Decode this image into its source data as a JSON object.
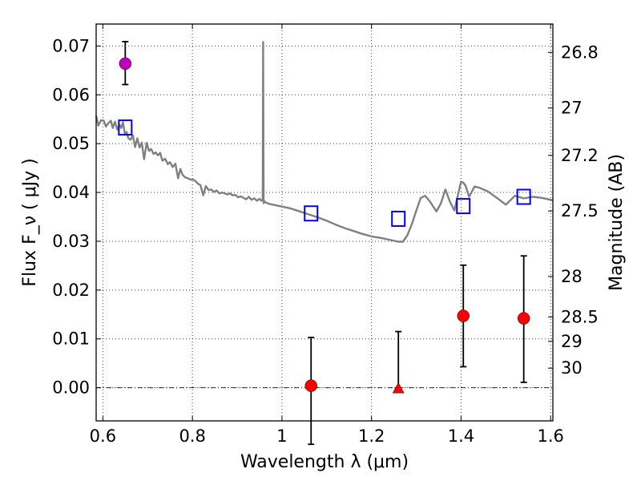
{
  "chart_data": {
    "type": "scatter",
    "title": "",
    "xlabel": "Wavelength  λ (μm)",
    "ylabel": "Flux  F_ν  ( μJy )",
    "ylabel_right": "Magnitude (AB)",
    "xlim": [
      0.585,
      1.605
    ],
    "ylim": [
      -0.0068,
      0.0745
    ],
    "grid": true,
    "x_ticks": [
      0.6,
      0.8,
      1.0,
      1.2,
      1.4,
      1.6
    ],
    "x_tick_labels": [
      "0.6",
      "0.8",
      "1",
      "1.2",
      "1.4",
      "1.6"
    ],
    "y_ticks": [
      0.0,
      0.01,
      0.02,
      0.03,
      0.04,
      0.05,
      0.06,
      0.07
    ],
    "y_tick_labels": [
      "0.00",
      "0.01",
      "0.02",
      "0.03",
      "0.04",
      "0.05",
      "0.06",
      "0.07"
    ],
    "right_ticks": [
      {
        "label": "26.8",
        "flux": 0.0687
      },
      {
        "label": "27",
        "flux": 0.0573
      },
      {
        "label": "27.2",
        "flux": 0.0476
      },
      {
        "label": "27.5",
        "flux": 0.0362
      },
      {
        "label": "28",
        "flux": 0.0228
      },
      {
        "label": "28.5",
        "flux": 0.0145
      },
      {
        "label": "29",
        "flux": 0.0095
      },
      {
        "label": "30",
        "flux": 0.004
      }
    ],
    "model_spectrum": {
      "color": "#808080",
      "x": [
        0.585,
        0.59,
        0.596,
        0.602,
        0.607,
        0.612,
        0.618,
        0.622,
        0.627,
        0.632,
        0.637,
        0.641,
        0.645,
        0.649,
        0.653,
        0.657,
        0.662,
        0.667,
        0.672,
        0.677,
        0.682,
        0.687,
        0.692,
        0.698,
        0.703,
        0.708,
        0.713,
        0.718,
        0.723,
        0.728,
        0.733,
        0.739,
        0.745,
        0.75,
        0.756,
        0.762,
        0.768,
        0.773,
        0.778,
        0.784,
        0.79,
        0.796,
        0.8,
        0.806,
        0.812,
        0.818,
        0.824,
        0.83,
        0.836,
        0.842,
        0.848,
        0.854,
        0.86,
        0.866,
        0.872,
        0.878,
        0.884,
        0.89,
        0.896,
        0.902,
        0.908,
        0.914,
        0.92,
        0.926,
        0.932,
        0.938,
        0.944,
        0.95,
        0.954,
        0.957,
        0.958,
        0.959,
        0.961,
        0.963,
        0.97,
        0.98,
        1.0,
        1.02,
        1.04,
        1.06,
        1.08,
        1.1,
        1.12,
        1.14,
        1.16,
        1.18,
        1.2,
        1.22,
        1.24,
        1.26,
        1.27,
        1.28,
        1.29,
        1.3,
        1.31,
        1.32,
        1.33,
        1.345,
        1.355,
        1.365,
        1.375,
        1.385,
        1.392,
        1.4,
        1.405,
        1.41,
        1.418,
        1.43,
        1.44,
        1.46,
        1.48,
        1.5,
        1.52,
        1.54,
        1.56,
        1.58,
        1.605
      ],
      "y": [
        0.0557,
        0.0537,
        0.0548,
        0.0547,
        0.0535,
        0.0542,
        0.0547,
        0.0532,
        0.0545,
        0.0529,
        0.0539,
        0.0532,
        0.0544,
        0.052,
        0.0524,
        0.0511,
        0.0508,
        0.0517,
        0.0493,
        0.0511,
        0.0492,
        0.0502,
        0.0468,
        0.0502,
        0.0485,
        0.0489,
        0.0479,
        0.0482,
        0.0476,
        0.0481,
        0.0465,
        0.0469,
        0.0458,
        0.0462,
        0.0452,
        0.0459,
        0.0429,
        0.0448,
        0.0436,
        0.0431,
        0.0429,
        0.0426,
        0.0427,
        0.0424,
        0.0418,
        0.0415,
        0.0394,
        0.0413,
        0.0405,
        0.0406,
        0.0401,
        0.0404,
        0.0398,
        0.04,
        0.0398,
        0.0396,
        0.0398,
        0.0394,
        0.0395,
        0.039,
        0.0392,
        0.0389,
        0.0386,
        0.0391,
        0.0385,
        0.0388,
        0.0383,
        0.0387,
        0.0383,
        0.0385,
        0.0708,
        0.0378,
        0.0382,
        0.038,
        0.0377,
        0.0375,
        0.0371,
        0.0367,
        0.0361,
        0.0355,
        0.0349,
        0.0342,
        0.0334,
        0.0327,
        0.0321,
        0.0315,
        0.031,
        0.0307,
        0.0303,
        0.0299,
        0.0299,
        0.0312,
        0.0335,
        0.0363,
        0.0389,
        0.0393,
        0.0382,
        0.0361,
        0.0378,
        0.0406,
        0.0381,
        0.0363,
        0.0391,
        0.0422,
        0.042,
        0.0414,
        0.0391,
        0.0412,
        0.041,
        0.0402,
        0.0389,
        0.0375,
        0.0393,
        0.0388,
        0.0391,
        0.0389,
        0.0384
      ]
    },
    "series": [
      {
        "marker": "circle",
        "color": "#bf00bf",
        "points": [
          {
            "x": 0.65,
            "y": 0.0664,
            "err_low": 0.0043,
            "err_high": 0.0045
          }
        ]
      },
      {
        "marker": "square-open",
        "color": "#0000ff",
        "points": [
          {
            "x": 0.65,
            "y": 0.0533
          },
          {
            "x": 1.065,
            "y": 0.0357
          },
          {
            "x": 1.26,
            "y": 0.0346
          },
          {
            "x": 1.405,
            "y": 0.0372
          },
          {
            "x": 1.54,
            "y": 0.0391
          }
        ]
      },
      {
        "marker": "circle",
        "color": "#ff0000",
        "points": [
          {
            "x": 1.065,
            "y": 0.0004,
            "err_low": 0.012,
            "err_high": 0.0099
          },
          {
            "x": 1.405,
            "y": 0.0147,
            "err_low": 0.0104,
            "err_high": 0.0104
          },
          {
            "x": 1.54,
            "y": 0.0142,
            "err_low": 0.0131,
            "err_high": 0.0128
          }
        ]
      },
      {
        "marker": "triangle",
        "color": "#ff0000",
        "points": [
          {
            "x": 1.26,
            "y": -0.0001,
            "err_low": 0.0,
            "err_high": 0.0116
          }
        ]
      }
    ],
    "zero_line": {
      "y": 0.0
    }
  }
}
